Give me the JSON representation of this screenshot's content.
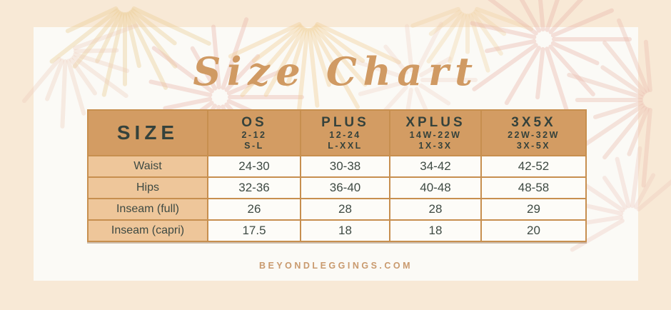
{
  "title": "Size Chart",
  "table": {
    "size_header": "SIZE",
    "columns": [
      {
        "name": "OS",
        "range": "2-12",
        "sizes": "S-L"
      },
      {
        "name": "PLUS",
        "range": "12-24",
        "sizes": "L-XXL"
      },
      {
        "name": "XPLUS",
        "range": "14W-22W",
        "sizes": "1X-3X"
      },
      {
        "name": "3X5X",
        "range": "22W-32W",
        "sizes": "3X-5X"
      }
    ],
    "rows": [
      {
        "label": "Waist",
        "values": [
          "24-30",
          "30-38",
          "34-42",
          "42-52"
        ]
      },
      {
        "label": "Hips",
        "values": [
          "32-36",
          "36-40",
          "40-48",
          "48-58"
        ]
      },
      {
        "label": "Inseam (full)",
        "values": [
          "26",
          "28",
          "28",
          "29"
        ]
      },
      {
        "label": "Inseam (capri)",
        "values": [
          "17.5",
          "18",
          "18",
          "20"
        ]
      }
    ]
  },
  "footer": {
    "website": "BEYONDLEGGINGS.COM"
  },
  "colors": {
    "background": "#f8e9d6",
    "card": "#fbfaf6",
    "header_fill": "#d39c63",
    "label_fill": "#eec69a",
    "body_border": "#c78f4f",
    "header_border": "#9c6836",
    "dark_text": "#35423c",
    "accent_script": "#d09a63",
    "footer_text": "#c99a6e"
  }
}
